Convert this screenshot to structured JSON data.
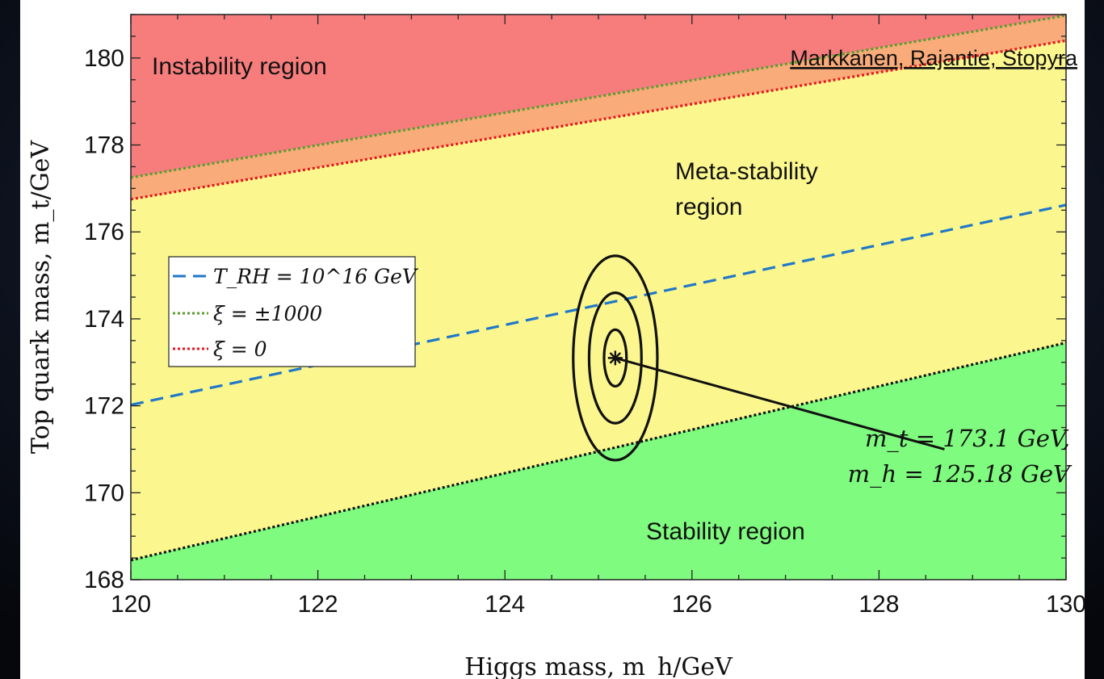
{
  "chart_data": {
    "type": "area",
    "xlabel": "Higgs mass, m_h/GeV",
    "ylabel": "Top quark mass, m_t/GeV",
    "xlim": [
      120,
      130
    ],
    "ylim": [
      168,
      181
    ],
    "xticks": [
      "120",
      "122",
      "124",
      "126",
      "128",
      "130"
    ],
    "yticks": [
      "168",
      "170",
      "172",
      "174",
      "176",
      "178",
      "180"
    ],
    "grid": false,
    "legend_placement": "middle-left",
    "credit": "Markkanen, Rajantie, Stopyra",
    "regions": [
      {
        "label": "Instability region",
        "color": "#f77d7d"
      },
      {
        "label": "Meta-stability region",
        "color": "#fbf78e"
      },
      {
        "label": "Stability region",
        "color": "#7ffb7f"
      }
    ],
    "band_color": "#f9ab79",
    "series": [
      {
        "name": "T_RH = 10^16 GeV",
        "style": "dashed",
        "color": "#1f77c8",
        "x": [
          120,
          130
        ],
        "y": [
          172.02,
          176.62
        ]
      },
      {
        "name": "ξ = ±1000",
        "style": "dotted",
        "color": "#5a9e2e",
        "x": [
          120,
          130
        ],
        "y": [
          177.25,
          180.98
        ]
      },
      {
        "name": "ξ = 0",
        "style": "dotted",
        "color": "#e8141c",
        "x": [
          120,
          130
        ],
        "y": [
          176.75,
          180.4
        ]
      },
      {
        "style": "dotted",
        "color": "#111111",
        "x": [
          120,
          130
        ],
        "y": [
          168.45,
          173.45
        ]
      }
    ],
    "measurement": {
      "mt": 173.1,
      "mh": 125.18,
      "label_mt": "m_t = 173.1 GeV,",
      "label_mh": "m_h = 125.18 GeV",
      "ellipses": [
        {
          "half_width_mh": 0.12,
          "half_height_mt": 0.65
        },
        {
          "half_width_mh": 0.28,
          "half_height_mt": 1.5
        },
        {
          "half_width_mh": 0.45,
          "half_height_mt": 2.35
        }
      ],
      "label_anchor": {
        "mh": 128.7,
        "mt": 171.0
      }
    }
  }
}
